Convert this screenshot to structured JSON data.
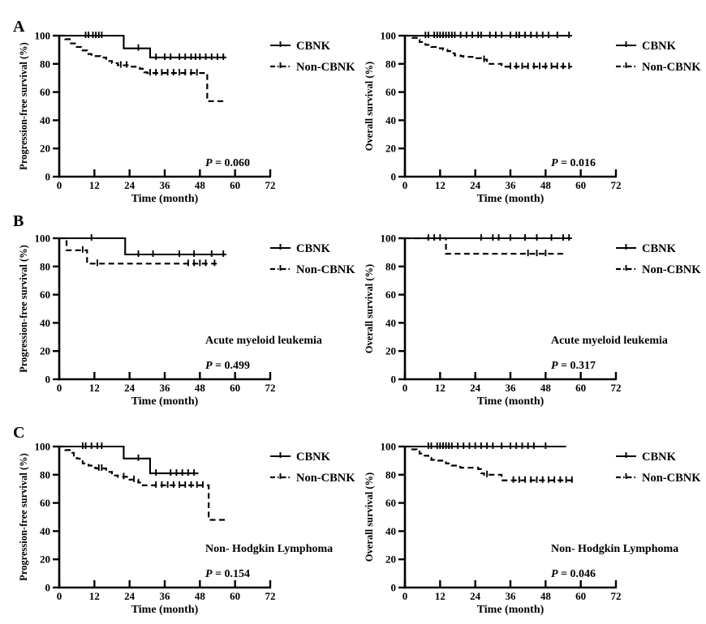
{
  "figure": {
    "panel_letters": [
      "A",
      "B",
      "C"
    ],
    "background": "#ffffff",
    "ink_color": "#000000"
  },
  "legend": {
    "items": [
      {
        "label": "CBNK",
        "style": "solid"
      },
      {
        "label": "Non-CBNK",
        "style": "dash-dot"
      }
    ]
  },
  "chart_data": [
    {
      "id": "panel-a-pfs",
      "type": "km_step",
      "panel_letter": "A",
      "position": {
        "row": 0,
        "col": 0
      },
      "ylabel": "Progression-free survival (%)",
      "xlabel": "Time (month)",
      "x_ticks": [
        0,
        12,
        24,
        36,
        48,
        60,
        72
      ],
      "y_ticks": [
        0,
        20,
        40,
        60,
        80,
        100
      ],
      "x_range": [
        0,
        72
      ],
      "y_range": [
        0,
        100
      ],
      "annotation": null,
      "p_label": "P = 0.060",
      "series": [
        {
          "name": "CBNK",
          "style": "solid",
          "start": 100,
          "end_time": 57,
          "drops": [
            [
              22,
              91
            ],
            [
              31,
              84.5
            ]
          ],
          "censor_times": [
            9,
            10,
            11.5,
            12.5,
            13.5,
            14.5,
            27,
            33,
            36,
            38,
            41,
            43,
            45,
            46.5,
            48,
            50,
            52,
            54,
            56
          ]
        },
        {
          "name": "Non-CBNK",
          "style": "dashed",
          "start": 100,
          "end_time": 57,
          "drops": [
            [
              2,
              97.5
            ],
            [
              4,
              94.5
            ],
            [
              6,
              92
            ],
            [
              7.5,
              89.5
            ],
            [
              9.5,
              87
            ],
            [
              11,
              85.5
            ],
            [
              14,
              84.5
            ],
            [
              16,
              82
            ],
            [
              18,
              80.5
            ],
            [
              20,
              79
            ],
            [
              24,
              78
            ],
            [
              27.5,
              76.5
            ],
            [
              29,
              74
            ],
            [
              30,
              73.5
            ],
            [
              50.5,
              53.5
            ]
          ],
          "censor_times": [
            21,
            23,
            31,
            33,
            35,
            37,
            39,
            41,
            43,
            45,
            47
          ]
        }
      ]
    },
    {
      "id": "panel-a-os",
      "type": "km_step",
      "panel_letter": "A",
      "position": {
        "row": 0,
        "col": 1
      },
      "ylabel": "Overall survival (%)",
      "xlabel": "Time (month)",
      "x_ticks": [
        0,
        12,
        24,
        36,
        48,
        60,
        72
      ],
      "y_ticks": [
        0,
        20,
        40,
        60,
        80,
        100
      ],
      "x_range": [
        0,
        72
      ],
      "y_range": [
        0,
        100
      ],
      "annotation": null,
      "p_label": "P = 0.016",
      "series": [
        {
          "name": "CBNK",
          "style": "solid",
          "start": 100,
          "end_time": 57,
          "drops": [],
          "censor_times": [
            7,
            8,
            10,
            11,
            12,
            13,
            14,
            15,
            16,
            17,
            19,
            21,
            23,
            25,
            26,
            29,
            31,
            33,
            36,
            38,
            39,
            41,
            43,
            45,
            47,
            49,
            52,
            56
          ]
        },
        {
          "name": "Non-CBNK",
          "style": "dashed",
          "start": 100,
          "end_time": 57,
          "drops": [
            [
              2.5,
              98.5
            ],
            [
              4,
              97
            ],
            [
              5,
              95.5
            ],
            [
              7,
              93.5
            ],
            [
              9,
              92
            ],
            [
              11,
              91
            ],
            [
              13,
              90
            ],
            [
              14.5,
              89
            ],
            [
              15.5,
              87.5
            ],
            [
              17,
              86
            ],
            [
              19,
              85.5
            ],
            [
              20,
              85
            ],
            [
              24,
              84
            ],
            [
              26,
              83
            ],
            [
              28,
              80
            ],
            [
              33,
              78
            ]
          ],
          "censor_times": [
            27,
            36,
            38,
            40,
            42,
            44,
            46,
            48,
            50,
            52,
            54,
            56
          ]
        }
      ]
    },
    {
      "id": "panel-b-pfs",
      "type": "km_step",
      "panel_letter": "B",
      "position": {
        "row": 1,
        "col": 0
      },
      "ylabel": "Progression-free survival (%)",
      "xlabel": "Time (month)",
      "x_ticks": [
        0,
        12,
        24,
        36,
        48,
        60,
        72
      ],
      "y_ticks": [
        0,
        20,
        40,
        60,
        80,
        100
      ],
      "x_range": [
        0,
        72
      ],
      "y_range": [
        0,
        100
      ],
      "annotation": "Acute myeloid leukemia",
      "p_label": "P = 0.499",
      "series": [
        {
          "name": "CBNK",
          "style": "solid",
          "start": 100,
          "end_time": 57,
          "drops": [
            [
              22.5,
              88.5
            ]
          ],
          "censor_times": [
            11,
            27,
            32,
            41,
            46,
            52,
            56
          ]
        },
        {
          "name": "Non-CBNK",
          "style": "dashed",
          "start": 100,
          "end_time": 55,
          "drops": [
            [
              2.5,
              91.5
            ],
            [
              9.5,
              82
            ]
          ],
          "censor_times": [
            8,
            13,
            44,
            46,
            48,
            50,
            53
          ]
        }
      ]
    },
    {
      "id": "panel-b-os",
      "type": "km_step",
      "panel_letter": "B",
      "position": {
        "row": 1,
        "col": 1
      },
      "ylabel": "Overall survival (%)",
      "xlabel": "Time (month)",
      "x_ticks": [
        0,
        12,
        24,
        36,
        48,
        60,
        72
      ],
      "y_ticks": [
        0,
        20,
        40,
        60,
        80,
        100
      ],
      "x_range": [
        0,
        72
      ],
      "y_range": [
        0,
        100
      ],
      "annotation": "Acute myeloid leukemia",
      "p_label": "P = 0.317",
      "series": [
        {
          "name": "CBNK",
          "style": "solid",
          "start": 100,
          "end_time": 57,
          "drops": [],
          "censor_times": [
            8,
            10,
            12,
            26,
            30,
            32,
            36,
            41,
            45,
            50,
            54,
            56
          ]
        },
        {
          "name": "Non-CBNK",
          "style": "dashed",
          "start": 100,
          "end_time": 55,
          "drops": [
            [
              14,
              89
            ]
          ],
          "censor_times": [
            42,
            45,
            48
          ]
        }
      ]
    },
    {
      "id": "panel-c-pfs",
      "type": "km_step",
      "panel_letter": "C",
      "position": {
        "row": 2,
        "col": 0
      },
      "ylabel": "Progression-free survival (%)",
      "xlabel": "Time (month)",
      "x_ticks": [
        0,
        12,
        24,
        36,
        48,
        60,
        72
      ],
      "y_ticks": [
        0,
        20,
        40,
        60,
        80,
        100
      ],
      "x_range": [
        0,
        72
      ],
      "y_range": [
        0,
        100
      ],
      "annotation": "Non- Hodgkin Lymphoma",
      "p_label": "P = 0.154",
      "series": [
        {
          "name": "CBNK",
          "style": "solid",
          "start": 100,
          "end_time": 47.5,
          "drops": [
            [
              22,
              91.5
            ],
            [
              31,
              81
            ]
          ],
          "censor_times": [
            8,
            9,
            11,
            13,
            14.5,
            27,
            33,
            38,
            40,
            42,
            44,
            46
          ]
        },
        {
          "name": "Non-CBNK",
          "style": "dashed",
          "start": 100,
          "end_time": 57,
          "drops": [
            [
              2,
              97.5
            ],
            [
              4,
              95.5
            ],
            [
              5,
              93.5
            ],
            [
              6,
              91.5
            ],
            [
              7,
              89.5
            ],
            [
              8,
              88
            ],
            [
              10,
              86.5
            ],
            [
              11,
              85
            ],
            [
              12.5,
              84.5
            ],
            [
              16,
              82
            ],
            [
              18,
              81
            ],
            [
              19,
              79.5
            ],
            [
              20,
              78.5
            ],
            [
              24,
              76.5
            ],
            [
              27,
              74.5
            ],
            [
              28.5,
              72.5
            ],
            [
              51,
              48
            ]
          ],
          "censor_times": [
            13.5,
            14.5,
            22,
            25.5,
            33,
            35,
            37,
            39,
            41,
            43,
            45,
            47,
            49
          ]
        }
      ]
    },
    {
      "id": "panel-c-os",
      "type": "km_step",
      "panel_letter": "C",
      "position": {
        "row": 2,
        "col": 1
      },
      "ylabel": "Overall survival (%)",
      "xlabel": "Time (month)",
      "x_ticks": [
        0,
        12,
        24,
        36,
        48,
        60,
        72
      ],
      "y_ticks": [
        0,
        20,
        40,
        60,
        80,
        100
      ],
      "x_range": [
        0,
        72
      ],
      "y_range": [
        0,
        100
      ],
      "annotation": "Non- Hodgkin Lymphoma",
      "p_label": "P = 0.046",
      "series": [
        {
          "name": "CBNK",
          "style": "solid",
          "start": 100,
          "end_time": 55,
          "drops": [],
          "censor_times": [
            8,
            9,
            11,
            12,
            13,
            14,
            15,
            16,
            18,
            20,
            22,
            24,
            26,
            28,
            30,
            33,
            36,
            38,
            40,
            42,
            44,
            48
          ]
        },
        {
          "name": "Non-CBNK",
          "style": "dashed",
          "start": 100,
          "end_time": 57.5,
          "drops": [
            [
              2,
              98
            ],
            [
              4,
              96.5
            ],
            [
              5,
              95
            ],
            [
              6,
              93.5
            ],
            [
              8,
              92
            ],
            [
              9,
              90.5
            ],
            [
              10,
              90
            ],
            [
              14,
              88
            ],
            [
              16,
              86.5
            ],
            [
              18,
              85.5
            ],
            [
              19,
              85
            ],
            [
              25,
              84
            ],
            [
              26,
              81
            ],
            [
              27,
              80
            ],
            [
              33,
              76
            ]
          ],
          "censor_times": [
            28,
            37,
            39,
            41,
            43,
            45,
            47,
            49,
            51,
            53,
            55,
            57
          ]
        }
      ]
    }
  ]
}
